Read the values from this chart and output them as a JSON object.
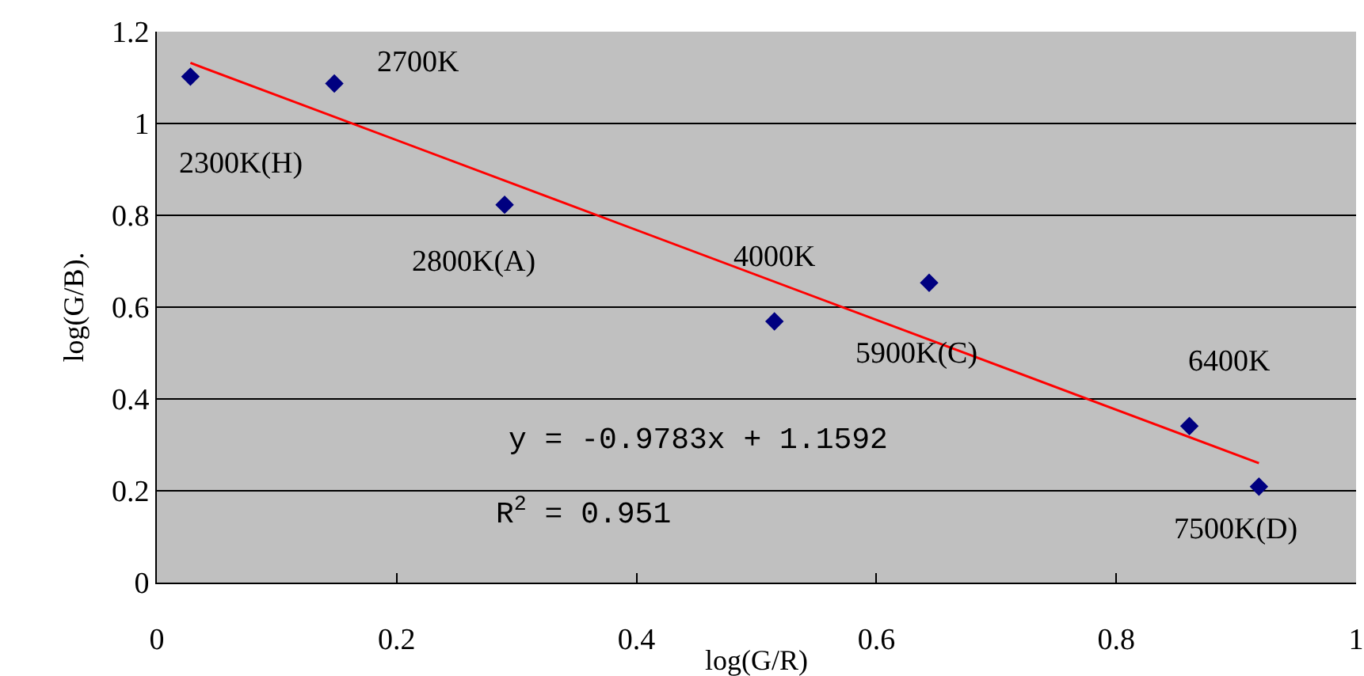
{
  "chart_data": {
    "type": "scatter",
    "xlabel": "log(G/R)",
    "ylabel": "log(G/B).",
    "series": [
      {
        "color": "#000080",
        "marker": "diamond",
        "x": [
          0.028,
          0.148,
          0.29,
          0.515,
          0.644,
          0.861,
          0.919
        ],
        "values": [
          1.102,
          1.087,
          0.823,
          0.569,
          0.653,
          0.341,
          0.209
        ]
      },
      {
        "type": "line",
        "color": "#ff0000",
        "marker": "none",
        "x": [
          0.028,
          0.919
        ],
        "values": [
          1.132,
          0.26
        ]
      }
    ],
    "annotations": [
      {
        "text": "2300K(H)",
        "x": 0.028,
        "y": 1.102
      },
      {
        "text": "2700K",
        "x": 0.148,
        "y": 1.087
      },
      {
        "text": "2800K(A)",
        "x": 0.29,
        "y": 0.823
      },
      {
        "text": "4000K",
        "x": 0.515,
        "y": 0.569
      },
      {
        "text": "5900K(C)",
        "x": 0.644,
        "y": 0.653
      },
      {
        "text": "6400K",
        "x": 0.861,
        "y": 0.341
      },
      {
        "text": "7500K(D)",
        "x": 0.919,
        "y": 0.209
      },
      "y = -0.9783x + 1.1592",
      "R$^{2}$ = 0.951"
    ],
    "xlim": [
      0,
      1
    ],
    "xticks": [
      0,
      0.2,
      0.4,
      0.6,
      0.8,
      1
    ],
    "ylim": [
      0,
      1.2
    ],
    "yticks": [
      0,
      0.2,
      0.4,
      0.6,
      0.8,
      1,
      1.2
    ],
    "grid": "y"
  }
}
